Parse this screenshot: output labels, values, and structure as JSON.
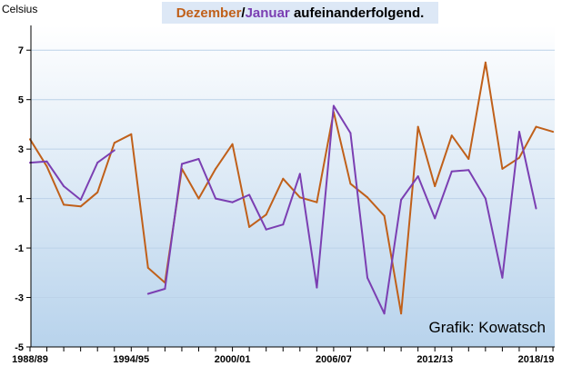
{
  "chart_data": {
    "type": "line",
    "title_parts": [
      {
        "text": "Dezember",
        "color": "#c0601a"
      },
      {
        "text": "/",
        "color": "#000000"
      },
      {
        "text": "Januar",
        "color": "#7b3fb2"
      },
      {
        "text": " aufeinanderfolgend.",
        "color": "#000000"
      }
    ],
    "ylabel": "Celsius",
    "credit": "Grafik: Kowatsch",
    "ylim": [
      -5,
      8
    ],
    "yticks": [
      7,
      5,
      3,
      1,
      -1,
      -3,
      -5
    ],
    "x_tick_labels": [
      "1988/89",
      "1994/95",
      "2000/01",
      "2006/07",
      "2012/13",
      "2018/19"
    ],
    "colors": {
      "dezember": "#c0601a",
      "januar": "#7b3fb2"
    },
    "x": [
      "1988/89",
      "1989/90",
      "1990/91",
      "1991/92",
      "1992/93",
      "1993/94",
      "1994/95",
      "1995/96",
      "1996/97",
      "1997/98",
      "1998/99",
      "1999/00",
      "2000/01",
      "2001/02",
      "2002/03",
      "2003/04",
      "2004/05",
      "2005/06",
      "2006/07",
      "2007/08",
      "2008/09",
      "2009/10",
      "2010/11",
      "2011/12",
      "2012/13",
      "2013/14",
      "2014/15",
      "2015/16",
      "2016/17",
      "2017/18",
      "2018/19",
      "2019/20"
    ],
    "series": [
      {
        "key": "dezember",
        "values": [
          3.4,
          2.3,
          0.75,
          0.68,
          1.25,
          3.25,
          3.6,
          -1.8,
          -2.4,
          2.2,
          1.0,
          2.2,
          3.2,
          -0.15,
          0.35,
          1.8,
          1.05,
          0.85,
          4.5,
          1.6,
          1.05,
          0.3,
          -3.65,
          3.9,
          1.5,
          3.55,
          2.6,
          6.5,
          2.2,
          2.65,
          3.9,
          3.7
        ]
      },
      {
        "key": "januar",
        "values": [
          2.45,
          2.5,
          1.5,
          0.95,
          2.45,
          2.95,
          null,
          -2.85,
          -2.65,
          2.4,
          2.6,
          1.0,
          0.85,
          1.15,
          -0.25,
          -0.05,
          2.0,
          -2.6,
          4.75,
          3.65,
          -2.2,
          -3.65,
          0.95,
          1.9,
          0.2,
          2.1,
          2.15,
          1.0,
          -2.2,
          3.7,
          0.6,
          null
        ]
      }
    ]
  }
}
